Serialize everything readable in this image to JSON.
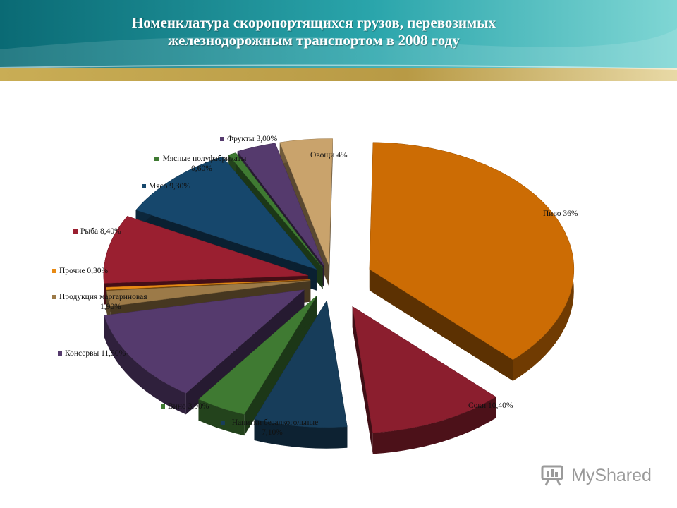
{
  "title": {
    "line1": "Номенклатура скоропортящихся грузов, перевозимых",
    "line2": "железнодорожным транспортом в 2008 году"
  },
  "watermark": {
    "text": "MyShared"
  },
  "colors": {
    "banner_dark": "#0b6f78",
    "banner_light": "#4dc1c4",
    "banner_gold": "#c8a84a"
  },
  "chart_data": {
    "type": "pie",
    "style": "3d-exploded",
    "slices": [
      {
        "label": "Пиво 36%",
        "value": 36,
        "color": "#cc6c04"
      },
      {
        "label": "Соки 10,40%",
        "value": 10.4,
        "color": "#8b1e2e"
      },
      {
        "label": "Напитки безалкогольные 7,10%",
        "value": 7.1,
        "color": "#173d5a"
      },
      {
        "label": "Вино 3,90%",
        "value": 3.9,
        "color": "#3f7a32"
      },
      {
        "label": "Консервы 11,50%",
        "value": 11.5,
        "color": "#553a6d"
      },
      {
        "label": "Продукция маргариновая 1,90%",
        "value": 1.9,
        "color": "#9c7a48"
      },
      {
        "label": "Прочие 0,30%",
        "value": 0.3,
        "color": "#e88a14"
      },
      {
        "label": "Рыба 8,40%",
        "value": 8.4,
        "color": "#9a1f30"
      },
      {
        "label": "Мясо 9,30%",
        "value": 9.3,
        "color": "#16476c"
      },
      {
        "label": "Мясные полуфабрикаты 0,60%",
        "value": 0.6,
        "color": "#3f7a32"
      },
      {
        "label": "Фрукты 3,00%",
        "value": 3.0,
        "color": "#553a6d"
      },
      {
        "label": "Овощи 4%",
        "value": 4,
        "color": "#c9a36c"
      }
    ],
    "labels_display": [
      {
        "lines": [
          "Пиво 36%"
        ],
        "anchor": "start"
      },
      {
        "lines": [
          "Соки 10,40%"
        ],
        "anchor": "start"
      },
      {
        "lines": [
          "Напитки безалкогольные",
          "7,10%"
        ],
        "anchor": "middle"
      },
      {
        "lines": [
          "Вино 3,90%"
        ],
        "anchor": "start"
      },
      {
        "lines": [
          "Консервы 11,50%"
        ],
        "anchor": "start"
      },
      {
        "lines": [
          "Продукция маргариновая",
          "1,90%"
        ],
        "anchor": "start"
      },
      {
        "lines": [
          "Прочие 0,30%"
        ],
        "anchor": "start"
      },
      {
        "lines": [
          "Рыба 8,40%"
        ],
        "anchor": "start"
      },
      {
        "lines": [
          "Мясо 9,30%"
        ],
        "anchor": "start"
      },
      {
        "lines": [
          "Мясные полуфабрикаты",
          "0,60%"
        ],
        "anchor": "middle"
      },
      {
        "lines": [
          "Фрукты 3,00%"
        ],
        "anchor": "start"
      },
      {
        "lines": [
          "Овощи 4%"
        ],
        "anchor": "start"
      }
    ]
  }
}
